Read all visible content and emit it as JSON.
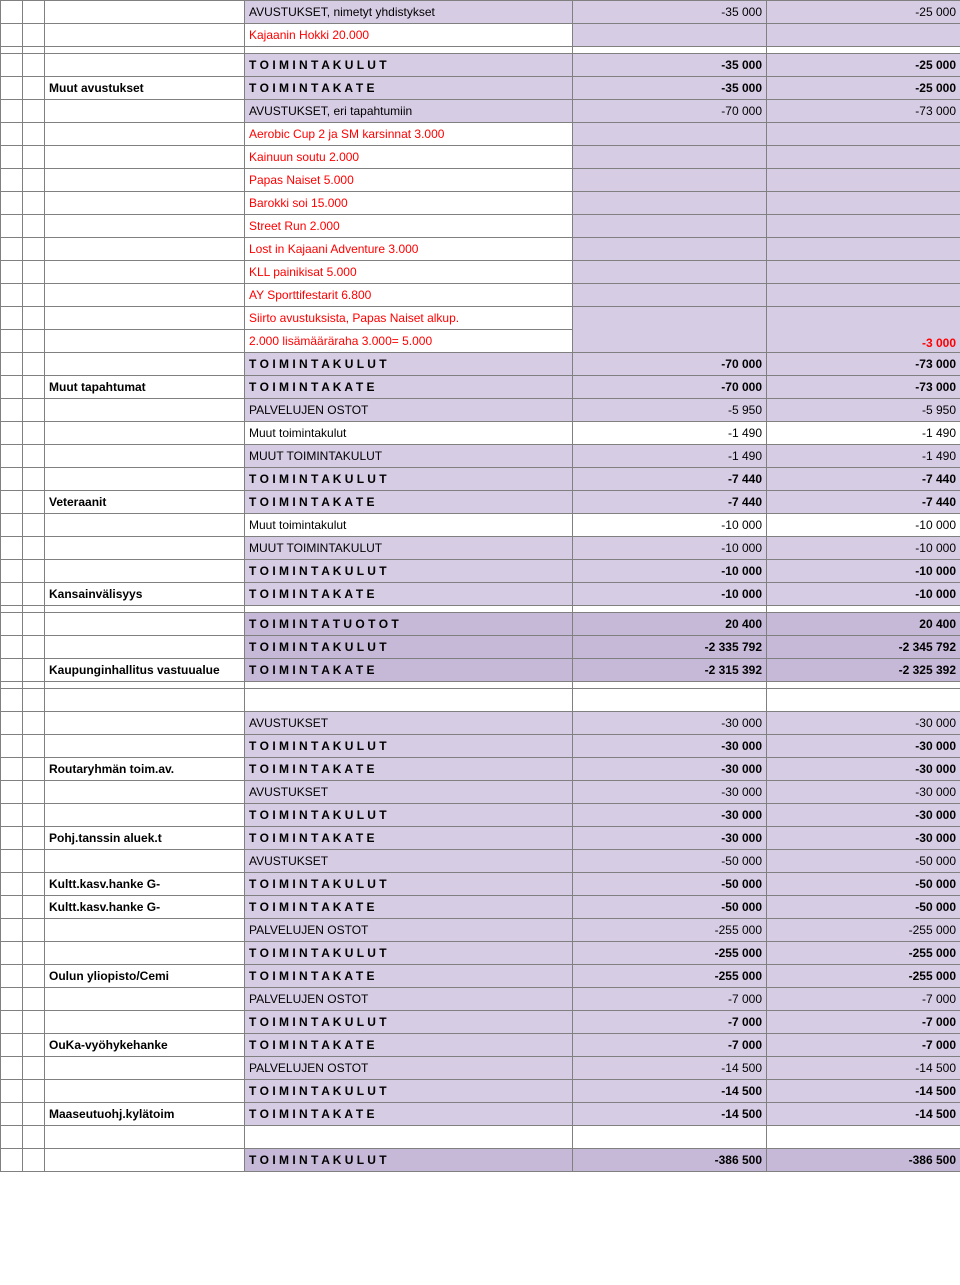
{
  "rows": [
    {
      "c3": "AVUSTUKSET, nimetyt yhdistykset",
      "c4": "-35 000",
      "c5": "-25 000",
      "c3_shade": true,
      "c4_shade": true,
      "c5_shade": true
    },
    {
      "c3": "Kajaanin Hokki 20.000",
      "c3_red": true,
      "c4": "",
      "c5": "",
      "c4_shade": true,
      "c5_shade": true
    },
    {
      "spacer": true
    },
    {
      "c3": "T O I M I N T A K U L U T",
      "c3_bold": true,
      "c3_shade": true,
      "c4": "-35 000",
      "c5": "-25 000",
      "c4_bold": true,
      "c5_bold": true,
      "c4_shade": true,
      "c5_shade": true
    },
    {
      "c2": "Muut avustukset",
      "c2_bold": true,
      "c3": "T O I M I N T A K A T E",
      "c3_bold": true,
      "c3_shade": true,
      "c4": "-35 000",
      "c5": "-25 000",
      "c4_bold": true,
      "c5_bold": true,
      "c4_shade": true,
      "c5_shade": true
    },
    {
      "c3": "AVUSTUKSET, eri tapahtumiin",
      "c3_shade": true,
      "c4": "-70 000",
      "c5": "-73 000",
      "c4_shade": true,
      "c5_shade": true
    },
    {
      "c3": "Aerobic Cup 2 ja SM karsinnat 3.000",
      "c3_red": true,
      "c4": "",
      "c5": "",
      "c4_shade": true,
      "c5_shade": true
    },
    {
      "c3": "Kainuun soutu 2.000",
      "c3_red": true,
      "c4": "",
      "c5": "",
      "c4_shade": true,
      "c5_shade": true
    },
    {
      "c3": "Papas Naiset 5.000",
      "c3_red": true,
      "c4": "",
      "c5": "",
      "c4_shade": true,
      "c5_shade": true
    },
    {
      "c3": "Barokki soi 15.000",
      "c3_red": true,
      "c4": "",
      "c5": "",
      "c4_shade": true,
      "c5_shade": true
    },
    {
      "c3": "Street Run 2.000",
      "c3_red": true,
      "c4": "",
      "c5": "",
      "c4_shade": true,
      "c5_shade": true
    },
    {
      "c3": "Lost in Kajaani Adventure 3.000",
      "c3_red": true,
      "c4": "",
      "c5": "",
      "c4_shade": true,
      "c5_shade": true
    },
    {
      "c3": "KLL painikisat 5.000",
      "c3_red": true,
      "c4": "",
      "c5": "",
      "c4_shade": true,
      "c5_shade": true
    },
    {
      "c3": "AY Sporttifestarit 6.800",
      "c3_red": true,
      "c4": "",
      "c5": "",
      "c4_shade": true,
      "c5_shade": true
    },
    {
      "c3": "Siirto avustuksista, Papas Naiset alkup.",
      "c3_red": true,
      "c4": "",
      "c5": "",
      "c4_shade": true,
      "c5_shade": true,
      "open": true
    },
    {
      "c3": "2.000 lisämääräraha 3.000= 5.000",
      "c3_red": true,
      "c4": "",
      "c5": "-3 000",
      "c5_bold": true,
      "c5_red": true,
      "c4_shade": true,
      "c5_shade": true,
      "close": true
    },
    {
      "c3": "T O I M I N T A K U L U T",
      "c3_bold": true,
      "c3_shade": true,
      "c4": "-70 000",
      "c5": "-73 000",
      "c4_bold": true,
      "c5_bold": true,
      "c4_shade": true,
      "c5_shade": true
    },
    {
      "c2": "Muut tapahtumat",
      "c2_bold": true,
      "c3": "T O I M I N T A K A T E",
      "c3_bold": true,
      "c3_shade": true,
      "c4": "-70 000",
      "c5": "-73 000",
      "c4_bold": true,
      "c5_bold": true,
      "c4_shade": true,
      "c5_shade": true
    },
    {
      "c3": "PALVELUJEN OSTOT",
      "c3_shade": true,
      "c4": "-5 950",
      "c5": "-5 950",
      "c4_shade": true,
      "c5_shade": true
    },
    {
      "c3": "Muut toimintakulut",
      "c4": "-1 490",
      "c5": "-1 490"
    },
    {
      "c3": "MUUT TOIMINTAKULUT",
      "c3_shade": true,
      "c4": "-1 490",
      "c5": "-1 490",
      "c4_shade": true,
      "c5_shade": true
    },
    {
      "c3": "T O I M I N T A K U L U T",
      "c3_bold": true,
      "c3_shade": true,
      "c4": "-7 440",
      "c5": "-7 440",
      "c4_bold": true,
      "c5_bold": true,
      "c4_shade": true,
      "c5_shade": true
    },
    {
      "c2": "Veteraanit",
      "c2_bold": true,
      "c3": "T O I M I N T A K A T E",
      "c3_bold": true,
      "c3_shade": true,
      "c4": "-7 440",
      "c5": "-7 440",
      "c4_bold": true,
      "c5_bold": true,
      "c4_shade": true,
      "c5_shade": true
    },
    {
      "c3": "Muut toimintakulut",
      "c4": "-10 000",
      "c5": "-10 000"
    },
    {
      "c3": "MUUT TOIMINTAKULUT",
      "c3_shade": true,
      "c4": "-10 000",
      "c5": "-10 000",
      "c4_shade": true,
      "c5_shade": true
    },
    {
      "c3": "T O I M I N T A K U L U T",
      "c3_bold": true,
      "c3_shade": true,
      "c4": "-10 000",
      "c5": "-10 000",
      "c4_bold": true,
      "c5_bold": true,
      "c4_shade": true,
      "c5_shade": true
    },
    {
      "c2": "Kansainvälisyys",
      "c2_bold": true,
      "c3": "T O I M I N T A K A T E",
      "c3_bold": true,
      "c3_shade": true,
      "c4": "-10 000",
      "c5": "-10 000",
      "c4_bold": true,
      "c5_bold": true,
      "c4_shade": true,
      "c5_shade": true
    },
    {
      "spacer": true
    },
    {
      "c3": "T O I M I N T A T U O T O T",
      "c3_bold": true,
      "c3_shadedark": true,
      "c4": "20 400",
      "c5": "20 400",
      "c4_bold": true,
      "c5_bold": true,
      "c4_shadedark": true,
      "c5_shadedark": true
    },
    {
      "c3": "T O I M I N T A K U L U T",
      "c3_bold": true,
      "c3_shadedark": true,
      "c4": "-2 335 792",
      "c5": "-2 345 792",
      "c4_bold": true,
      "c5_bold": true,
      "c4_shadedark": true,
      "c5_shadedark": true
    },
    {
      "c2": "Kaupunginhallitus vastuualue",
      "c2_bold": true,
      "c3": "T O I M I N T A K A T E",
      "c3_bold": true,
      "c3_shadedark": true,
      "c4": "-2 315 392",
      "c5": "-2 325 392",
      "c4_bold": true,
      "c5_bold": true,
      "c4_shadedark": true,
      "c5_shadedark": true
    },
    {
      "spacer": true
    },
    {
      "empty": true
    },
    {
      "c3": "AVUSTUKSET",
      "c3_shade": true,
      "c4": "-30 000",
      "c5": "-30 000",
      "c4_shade": true,
      "c5_shade": true
    },
    {
      "c3": "T O I M I N T A K U L U T",
      "c3_bold": true,
      "c3_shade": true,
      "c4": "-30 000",
      "c5": "-30 000",
      "c4_bold": true,
      "c5_bold": true,
      "c4_shade": true,
      "c5_shade": true
    },
    {
      "c2": "Routaryhmän toim.av.",
      "c2_bold": true,
      "c3": "T O I M I N T A K A T E",
      "c3_bold": true,
      "c3_shade": true,
      "c4": "-30 000",
      "c5": "-30 000",
      "c4_bold": true,
      "c5_bold": true,
      "c4_shade": true,
      "c5_shade": true
    },
    {
      "c3": "AVUSTUKSET",
      "c3_shade": true,
      "c4": "-30 000",
      "c5": "-30 000",
      "c4_shade": true,
      "c5_shade": true
    },
    {
      "c3": "T O I M I N T A K U L U T",
      "c3_bold": true,
      "c3_shade": true,
      "c4": "-30 000",
      "c5": "-30 000",
      "c4_bold": true,
      "c5_bold": true,
      "c4_shade": true,
      "c5_shade": true
    },
    {
      "c2": "Pohj.tanssin aluek.t",
      "c2_bold": true,
      "c3": "T O I M I N T A K A T E",
      "c3_bold": true,
      "c3_shade": true,
      "c4": "-30 000",
      "c5": "-30 000",
      "c4_bold": true,
      "c5_bold": true,
      "c4_shade": true,
      "c5_shade": true
    },
    {
      "c3": "AVUSTUKSET",
      "c3_shade": true,
      "c4": "-50 000",
      "c5": "-50 000",
      "c4_shade": true,
      "c5_shade": true
    },
    {
      "c2": "Kultt.kasv.hanke  G-",
      "c2_bold": true,
      "c3": "T O I M I N T A K U L U T",
      "c3_bold": true,
      "c3_shade": true,
      "c4": "-50 000",
      "c5": "-50 000",
      "c4_bold": true,
      "c5_bold": true,
      "c4_shade": true,
      "c5_shade": true
    },
    {
      "c2": "Kultt.kasv.hanke  G-",
      "c2_bold": true,
      "c3": "T O I M I N T A K A T E",
      "c3_bold": true,
      "c3_shade": true,
      "c4": "-50 000",
      "c5": "-50 000",
      "c4_bold": true,
      "c5_bold": true,
      "c4_shade": true,
      "c5_shade": true
    },
    {
      "c3": "PALVELUJEN OSTOT",
      "c3_shade": true,
      "c4": "-255 000",
      "c5": "-255 000",
      "c4_shade": true,
      "c5_shade": true
    },
    {
      "c3": "T O I M I N T A K U L U T",
      "c3_bold": true,
      "c3_shade": true,
      "c4": "-255 000",
      "c5": "-255 000",
      "c4_bold": true,
      "c5_bold": true,
      "c4_shade": true,
      "c5_shade": true
    },
    {
      "c2": "Oulun yliopisto/Cemi",
      "c2_bold": true,
      "c3": "T O I M I N T A K A T E",
      "c3_bold": true,
      "c3_shade": true,
      "c4": "-255 000",
      "c5": "-255 000",
      "c4_bold": true,
      "c5_bold": true,
      "c4_shade": true,
      "c5_shade": true
    },
    {
      "c3": "PALVELUJEN OSTOT",
      "c3_shade": true,
      "c4": "-7 000",
      "c5": "-7 000",
      "c4_shade": true,
      "c5_shade": true
    },
    {
      "c3": "T O I M I N T A K U L U T",
      "c3_bold": true,
      "c3_shade": true,
      "c4": "-7 000",
      "c5": "-7 000",
      "c4_bold": true,
      "c5_bold": true,
      "c4_shade": true,
      "c5_shade": true
    },
    {
      "c2": "OuKa-vyöhykehanke",
      "c2_bold": true,
      "c3": "T O I M I N T A K A T E",
      "c3_bold": true,
      "c3_shade": true,
      "c4": "-7 000",
      "c5": "-7 000",
      "c4_bold": true,
      "c5_bold": true,
      "c4_shade": true,
      "c5_shade": true
    },
    {
      "c3": "PALVELUJEN OSTOT",
      "c3_shade": true,
      "c4": "-14 500",
      "c5": "-14 500",
      "c4_shade": true,
      "c5_shade": true
    },
    {
      "c3": "T O I M I N T A K U L U T",
      "c3_bold": true,
      "c3_shade": true,
      "c4": "-14 500",
      "c5": "-14 500",
      "c4_bold": true,
      "c5_bold": true,
      "c4_shade": true,
      "c5_shade": true
    },
    {
      "c2": "Maaseutuohj.kylätoim",
      "c2_bold": true,
      "c3": "T O I M I N T A K A T E",
      "c3_bold": true,
      "c3_shade": true,
      "c4": "-14 500",
      "c5": "-14 500",
      "c4_bold": true,
      "c5_bold": true,
      "c4_shade": true,
      "c5_shade": true
    },
    {
      "empty": true
    },
    {
      "c3": "T O I M I N T A K U L U T",
      "c3_bold": true,
      "c3_shadedark": true,
      "c4": "-386 500",
      "c5": "-386 500",
      "c4_bold": true,
      "c5_bold": true,
      "c4_shadedark": true,
      "c5_shadedark": true
    }
  ]
}
